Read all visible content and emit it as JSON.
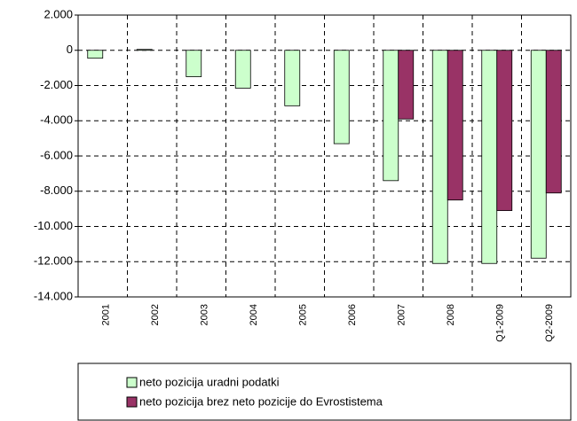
{
  "chart_data": {
    "type": "bar",
    "categories": [
      "2001",
      "2002",
      "2003",
      "2004",
      "2005",
      "2006",
      "2007",
      "2008",
      "Q1-2009",
      "Q2-2009"
    ],
    "series": [
      {
        "name": "neto pozicija uradni podatki",
        "color": "#ccffcc",
        "values": [
          -450,
          50,
          -1500,
          -2150,
          -3150,
          -5300,
          -7400,
          -12100,
          -12100,
          -11800
        ]
      },
      {
        "name": "neto pozicija brez neto pozicije do Evrostistema",
        "color": "#993366",
        "values": [
          null,
          null,
          null,
          null,
          null,
          null,
          -3900,
          -8500,
          -9100,
          -8100
        ]
      }
    ],
    "ylim": [
      -14000,
      2000
    ],
    "yticks": [
      {
        "value": -14000,
        "label": "-14.000"
      },
      {
        "value": -12000,
        "label": "-12.000"
      },
      {
        "value": -10000,
        "label": "-10.000"
      },
      {
        "value": -8000,
        "label": "-8.000"
      },
      {
        "value": -6000,
        "label": "-6.000"
      },
      {
        "value": -4000,
        "label": "-4.000"
      },
      {
        "value": -2000,
        "label": "-2.000"
      },
      0,
      {
        "value": 2000,
        "label": "2.000"
      }
    ],
    "grid": true,
    "legend": "bottom"
  }
}
